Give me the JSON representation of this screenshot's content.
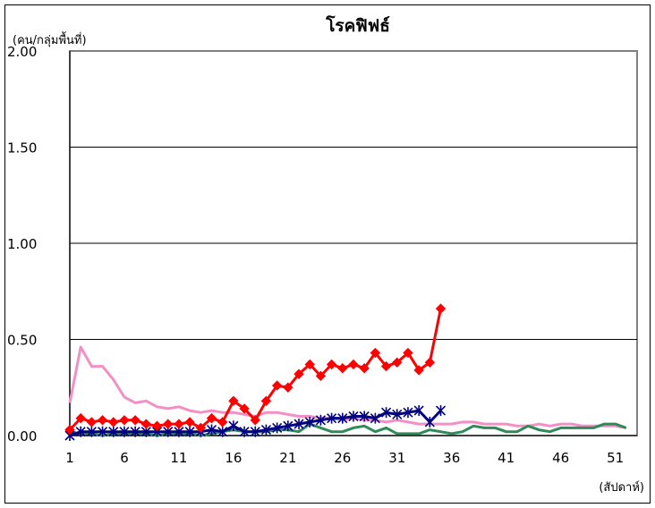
{
  "chart_data": {
    "type": "line",
    "title": "โรคฟิฟธ์",
    "ylabel": "(คน/กลุ่มพื้นที่)",
    "xlabel": "(สัปดาห์)",
    "ylim": [
      0,
      2.0
    ],
    "xlim": [
      1,
      53
    ],
    "y_ticks": [
      "2.00",
      "1.50",
      "1.00",
      "0.50",
      "0.00"
    ],
    "y_tick_values": [
      2.0,
      1.5,
      1.0,
      0.5,
      0.0
    ],
    "x_ticks": [
      "1",
      "6",
      "11",
      "16",
      "21",
      "26",
      "31",
      "36",
      "41",
      "46",
      "51"
    ],
    "x_tick_values": [
      1,
      6,
      11,
      16,
      21,
      26,
      31,
      36,
      41,
      46,
      51
    ],
    "grid": "horizontal",
    "legend": "none",
    "series": [
      {
        "color": "#f48fc6",
        "marker": "none",
        "x": [
          1,
          2,
          3,
          4,
          5,
          6,
          7,
          8,
          9,
          10,
          11,
          12,
          13,
          14,
          15,
          16,
          17,
          18,
          19,
          20,
          21,
          22,
          23,
          24,
          25,
          26,
          27,
          28,
          29,
          30,
          31,
          32,
          33,
          34,
          35,
          36,
          37,
          38,
          39,
          40,
          41,
          42,
          43,
          44,
          45,
          46,
          47,
          48,
          49,
          50,
          51,
          52
        ],
        "values": [
          0.17,
          0.46,
          0.36,
          0.36,
          0.29,
          0.2,
          0.17,
          0.18,
          0.15,
          0.14,
          0.15,
          0.13,
          0.12,
          0.13,
          0.12,
          0.12,
          0.11,
          0.1,
          0.12,
          0.12,
          0.11,
          0.1,
          0.1,
          0.09,
          0.09,
          0.08,
          0.09,
          0.08,
          0.08,
          0.07,
          0.08,
          0.07,
          0.06,
          0.06,
          0.06,
          0.06,
          0.07,
          0.07,
          0.06,
          0.06,
          0.06,
          0.05,
          0.05,
          0.06,
          0.05,
          0.06,
          0.06,
          0.05,
          0.05,
          0.05,
          0.05,
          0.04
        ]
      },
      {
        "color": "#2e8b57",
        "marker": "none",
        "x": [
          1,
          2,
          3,
          4,
          5,
          6,
          7,
          8,
          9,
          10,
          11,
          12,
          13,
          14,
          15,
          16,
          17,
          18,
          19,
          20,
          21,
          22,
          23,
          24,
          25,
          26,
          27,
          28,
          29,
          30,
          31,
          32,
          33,
          34,
          35,
          36,
          37,
          38,
          39,
          40,
          41,
          42,
          43,
          44,
          45,
          46,
          47,
          48,
          49,
          50,
          51,
          52
        ],
        "values": [
          0.02,
          0.01,
          0.01,
          0.0,
          0.01,
          0.01,
          0.01,
          0.01,
          0.0,
          0.01,
          0.01,
          0.01,
          0.0,
          0.01,
          0.02,
          0.03,
          0.02,
          0.02,
          0.02,
          0.03,
          0.03,
          0.02,
          0.06,
          0.04,
          0.02,
          0.02,
          0.04,
          0.05,
          0.02,
          0.04,
          0.01,
          0.01,
          0.01,
          0.03,
          0.02,
          0.01,
          0.02,
          0.05,
          0.04,
          0.04,
          0.02,
          0.02,
          0.05,
          0.03,
          0.02,
          0.04,
          0.04,
          0.04,
          0.04,
          0.06,
          0.06,
          0.04
        ]
      },
      {
        "color": "#000080",
        "marker": "asterisk",
        "x": [
          1,
          2,
          3,
          4,
          5,
          6,
          7,
          8,
          9,
          10,
          11,
          12,
          13,
          14,
          15,
          16,
          17,
          18,
          19,
          20,
          21,
          22,
          23,
          24,
          25,
          26,
          27,
          28,
          29,
          30,
          31,
          32,
          33,
          34,
          35
        ],
        "values": [
          0.0,
          0.02,
          0.02,
          0.02,
          0.02,
          0.02,
          0.02,
          0.02,
          0.02,
          0.02,
          0.02,
          0.02,
          0.02,
          0.03,
          0.02,
          0.05,
          0.02,
          0.02,
          0.03,
          0.04,
          0.05,
          0.06,
          0.07,
          0.08,
          0.09,
          0.09,
          0.1,
          0.1,
          0.09,
          0.12,
          0.11,
          0.12,
          0.13,
          0.07,
          0.13
        ]
      },
      {
        "color": "#ff0000",
        "marker": "diamond",
        "x": [
          1,
          2,
          3,
          4,
          5,
          6,
          7,
          8,
          9,
          10,
          11,
          12,
          13,
          14,
          15,
          16,
          17,
          18,
          19,
          20,
          21,
          22,
          23,
          24,
          25,
          26,
          27,
          28,
          29,
          30,
          31,
          32,
          33,
          34,
          35
        ],
        "values": [
          0.03,
          0.09,
          0.07,
          0.08,
          0.07,
          0.08,
          0.08,
          0.06,
          0.05,
          0.06,
          0.06,
          0.07,
          0.04,
          0.09,
          0.07,
          0.18,
          0.14,
          0.08,
          0.18,
          0.26,
          0.25,
          0.32,
          0.37,
          0.31,
          0.37,
          0.35,
          0.37,
          0.35,
          0.43,
          0.36,
          0.38,
          0.43,
          0.34,
          0.38,
          0.66
        ]
      }
    ]
  }
}
